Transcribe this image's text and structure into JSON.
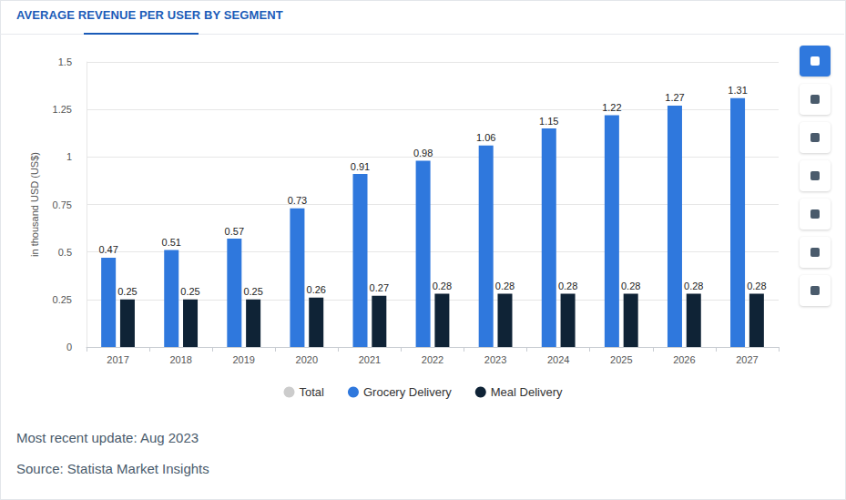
{
  "chart_data": {
    "type": "bar",
    "title": "AVERAGE REVENUE PER USER BY SEGMENT",
    "y_label": "in thousand USD (US$)",
    "categories": [
      "2017",
      "2018",
      "2019",
      "2020",
      "2021",
      "2022",
      "2023",
      "2024",
      "2025",
      "2026",
      "2027"
    ],
    "series": [
      {
        "name": "Total",
        "type": "line",
        "color": "#cccccc",
        "values": [
          null,
          null,
          null,
          null,
          null,
          null,
          null,
          null,
          null,
          null,
          null
        ]
      },
      {
        "name": "Grocery Delivery",
        "color": "#2f78dd",
        "values": [
          0.47,
          0.51,
          0.57,
          0.73,
          0.91,
          0.98,
          1.06,
          1.15,
          1.22,
          1.27,
          1.31
        ]
      },
      {
        "name": "Meal Delivery",
        "color": "#0f2336",
        "values": [
          0.25,
          0.25,
          0.25,
          0.26,
          0.27,
          0.28,
          0.28,
          0.28,
          0.28,
          0.28,
          0.28
        ]
      }
    ],
    "ylim": [
      0,
      1.5
    ],
    "yticks": [
      0,
      0.25,
      0.5,
      0.75,
      1,
      1.25,
      1.5
    ],
    "grid": true,
    "legend": "bottom",
    "data_labels": true
  },
  "footer": [
    "Most recent update: Aug 2023",
    "Source: Statista Market Insights"
  ]
}
